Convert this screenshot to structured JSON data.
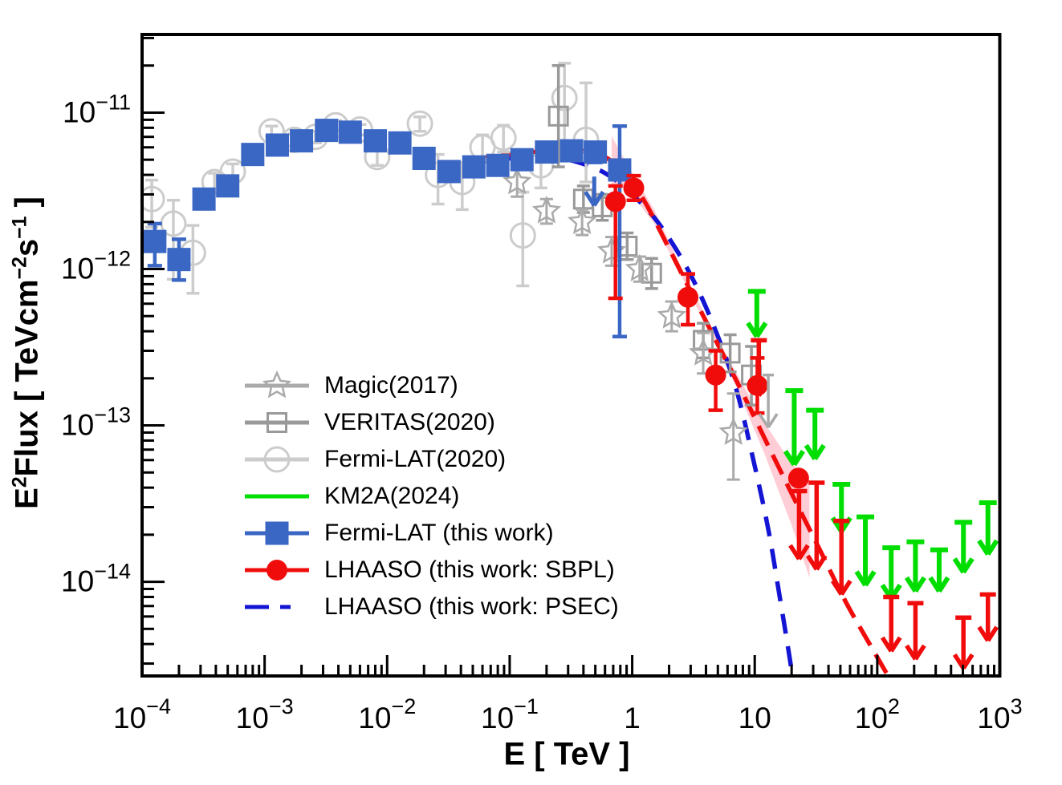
{
  "chart_data": {
    "type": "scatter",
    "title": "",
    "xlabel": "E [ TeV ]",
    "ylabel_parts": [
      {
        "t": "E"
      },
      {
        "t": "2",
        "sup": true
      },
      {
        "t": "Flux [ TeVcm"
      },
      {
        "t": "−2",
        "sup": true
      },
      {
        "t": "s"
      },
      {
        "t": "−1",
        "sup": true
      },
      {
        "t": " ]"
      }
    ],
    "xlim": [
      0.0001,
      1000
    ],
    "ylim": [
      2.5e-15,
      3.16e-11
    ],
    "grid": false,
    "legend_position": "inside-left-bottom",
    "x_tick_labels": [
      {
        "v": 0.0001,
        "base": "10",
        "exp": "−4"
      },
      {
        "v": 0.001,
        "base": "10",
        "exp": "−3"
      },
      {
        "v": 0.01,
        "base": "10",
        "exp": "−2"
      },
      {
        "v": 0.1,
        "base": "10",
        "exp": "−1"
      },
      {
        "v": 1,
        "base": "1",
        "exp": ""
      },
      {
        "v": 10,
        "base": "10",
        "exp": ""
      },
      {
        "v": 100,
        "base": "10",
        "exp": "2"
      },
      {
        "v": 1000,
        "base": "10",
        "exp": "3"
      }
    ],
    "y_tick_labels": [
      {
        "v": 1e-11,
        "base": "10",
        "exp": "−11"
      },
      {
        "v": 1e-12,
        "base": "10",
        "exp": "−12"
      },
      {
        "v": 1e-13,
        "base": "10",
        "exp": "−13"
      },
      {
        "v": 1e-14,
        "base": "10",
        "exp": "−14"
      }
    ],
    "colors": {
      "magic": "#aaaaaa",
      "veritas": "#999999",
      "fermi2020": "#cccccc",
      "km2a": "#00dd00",
      "fermi_this": "#3a66c4",
      "lhaaso": "#f10c0c",
      "psec": "#1414d4",
      "band": "#ffc0cb",
      "frame": "#000000"
    },
    "series": [
      {
        "id": "fermi2020",
        "name": "Fermi-LAT(2020)",
        "marker": "circle-open",
        "color": "#cccccc",
        "barw": 3.5,
        "points": [
          [
            0.00012,
            2.8e-12,
            1.85e-12,
            3.7e-12
          ],
          [
            0.00018,
            1.95e-12,
            8.6e-13,
            2.75e-12
          ],
          [
            0.00026,
            1.27e-12,
            7e-13,
            1.9e-12
          ],
          [
            0.00039,
            3.6e-12,
            3.1e-12,
            4.1e-12
          ],
          [
            0.00055,
            4.2e-12,
            3.7e-12,
            4.7e-12
          ],
          [
            0.00114,
            7.6e-12,
            7e-12,
            8.2e-12
          ],
          [
            0.00175,
            6.7e-12,
            6.1e-12,
            7.3e-12
          ],
          [
            0.0026,
            7e-12,
            6.4e-12,
            7.6e-12
          ],
          [
            0.0038,
            8.3e-12,
            7.7e-12,
            8.9e-12
          ],
          [
            0.006,
            7.8e-12,
            7.2e-12,
            8.4e-12
          ],
          [
            0.0083,
            5.2e-12,
            4.6e-12,
            5.8e-12
          ],
          [
            0.0185,
            8.5e-12,
            7.6e-12,
            9.4e-12
          ],
          [
            0.026,
            4e-12,
            2.6e-12,
            5.4e-12
          ],
          [
            0.041,
            3.6e-12,
            2.4e-12,
            4.8e-12
          ],
          [
            0.06,
            6e-12,
            4.9e-12,
            7.2e-12
          ],
          [
            0.089,
            6.9e-12,
            5.6e-12,
            8.3e-12
          ],
          [
            0.128,
            1.64e-12,
            7.8e-13,
            3.1e-12
          ],
          [
            0.18,
            4.6e-12,
            3.3e-12,
            6e-12
          ],
          [
            0.28,
            1.24e-11,
            6.3e-12,
            2.07e-11
          ],
          [
            0.42,
            6.7e-12,
            3.6e-12,
            1.55e-11
          ]
        ]
      },
      {
        "id": "veritas",
        "name": "VERITAS(2020)",
        "marker": "square-open",
        "color": "#999999",
        "barw": 3.5,
        "points": [
          [
            0.25,
            9.5e-12,
            4.5e-12,
            2e-11
          ],
          [
            0.4,
            2.8e-12,
            2.3e-12,
            3.4e-12
          ],
          [
            0.57,
            2.5e-12,
            2.05e-12,
            3e-12
          ],
          [
            0.91,
            1.4e-12,
            1.15e-12,
            1.7e-12
          ],
          [
            1.44,
            9.4e-13,
            7.5e-13,
            1.17e-12
          ],
          [
            3.8,
            3.5e-13,
            2.7e-13,
            4.5e-13
          ],
          [
            6.3,
            2.9e-13,
            2.2e-13,
            3.8e-13
          ],
          [
            9.4,
            2.1e-13,
            1.35e-13,
            3.2e-13
          ]
        ]
      },
      {
        "id": "magic",
        "name": "Magic(2017)",
        "marker": "star-open",
        "color": "#aaaaaa",
        "barw": 3,
        "points": [
          [
            0.115,
            3.6e-12,
            2.9e-12,
            4.3e-12
          ],
          [
            0.2,
            2.35e-12,
            1.95e-12,
            2.8e-12
          ],
          [
            0.39,
            2e-12,
            1.65e-12,
            2.4e-12
          ],
          [
            0.68,
            1.3e-12,
            1.05e-12,
            1.6e-12
          ],
          [
            1.15,
            1e-12,
            8.3e-13,
            1.2e-12
          ],
          [
            2.1,
            5e-13,
            4e-13,
            6.2e-13
          ],
          [
            3.8,
            2.9e-13,
            2.15e-13,
            3.9e-13
          ],
          [
            6.7,
            9e-14,
            4.5e-14,
            1.6e-13
          ]
        ]
      },
      {
        "id": "fermi_this",
        "name": "Fermi-LAT (this work)",
        "marker": "square-filled",
        "color": "#3a66c4",
        "barw": 4.5,
        "points": [
          [
            0.000127,
            1.5e-12,
            1.05e-12,
            1.95e-12
          ],
          [
            0.0002,
            1.15e-12,
            8.5e-13,
            1.55e-12
          ],
          [
            0.00032,
            2.8e-12,
            2.45e-12,
            3.2e-12
          ],
          [
            0.0005,
            3.4e-12,
            3e-12,
            3.8e-12
          ],
          [
            0.0008,
            5.4e-12,
            5e-12,
            5.8e-12
          ],
          [
            0.00127,
            6.2e-12,
            5.8e-12,
            6.6e-12
          ],
          [
            0.002,
            6.6e-12,
            6.2e-12,
            7e-12
          ],
          [
            0.0032,
            7.7e-12,
            7.3e-12,
            8.1e-12
          ],
          [
            0.005,
            7.5e-12,
            7.1e-12,
            7.9e-12
          ],
          [
            0.008,
            6.6e-12,
            6.2e-12,
            7e-12
          ],
          [
            0.0127,
            6.4e-12,
            6e-12,
            6.8e-12
          ],
          [
            0.02,
            5.1e-12,
            4.7e-12,
            5.5e-12
          ],
          [
            0.032,
            4.2e-12,
            3.7e-12,
            4.7e-12
          ],
          [
            0.051,
            4.5e-12,
            4e-12,
            5e-12
          ],
          [
            0.08,
            4.6e-12,
            4.1e-12,
            5.1e-12
          ],
          [
            0.126,
            5e-12,
            4.4e-12,
            5.6e-12
          ],
          [
            0.2,
            5.6e-12,
            4.9e-12,
            6.3e-12
          ],
          [
            0.32,
            5.7e-12,
            5e-12,
            6.5e-12
          ],
          [
            0.5,
            5.6e-12,
            4.8e-12,
            6.4e-12
          ],
          [
            0.79,
            4.3e-12,
            3.7e-13,
            8.2e-12
          ]
        ]
      },
      {
        "id": "lhaaso",
        "name": "LHAASO (this work: SBPL)",
        "marker": "circle-filled",
        "color": "#f10c0c",
        "barw": 4.5,
        "points": [
          [
            0.73,
            2.7e-12,
            6.5e-13,
            3.4e-12
          ],
          [
            1.03,
            3.3e-12,
            2.75e-12,
            3.95e-12
          ],
          [
            2.85,
            6.6e-13,
            4.4e-13,
            9.3e-13
          ],
          [
            4.8,
            2.1e-13,
            1.25e-13,
            3e-13
          ],
          [
            10.5,
            1.8e-13,
            1.2e-13,
            2.7e-13
          ],
          [
            22.8,
            4.6e-14,
            null,
            null
          ]
        ]
      }
    ],
    "curves": [
      {
        "id": "psec",
        "name": "LHAASO (this work: PSEC)",
        "color": "#1414d4",
        "width": 5.5,
        "dash": "25 16",
        "points": [
          [
            0.026,
            4.4e-12
          ],
          [
            0.05,
            4.8e-12
          ],
          [
            0.1,
            5.1e-12
          ],
          [
            0.18,
            5.2e-12
          ],
          [
            0.3,
            5e-12
          ],
          [
            0.5,
            4.4e-12
          ],
          [
            0.7,
            3.8e-12
          ],
          [
            1.0,
            3e-12
          ],
          [
            1.5,
            2.15e-12
          ],
          [
            2.2,
            1.4e-12
          ],
          [
            3.2,
            8.3e-13
          ],
          [
            4.7,
            4.2e-13
          ],
          [
            7.0,
            1.75e-13
          ],
          [
            10,
            5.5e-14
          ],
          [
            13,
            2.1e-14
          ],
          [
            16,
            8e-15
          ],
          [
            18.5,
            4e-15
          ],
          [
            20.5,
            2.4e-15
          ]
        ]
      },
      {
        "id": "sbpl",
        "name": "LHAASO (this work: SBPL) fit",
        "color": "#f10c0c",
        "width": 5.5,
        "dash": "27 13",
        "points": [
          [
            0.026,
            4.5e-12
          ],
          [
            0.05,
            5e-12
          ],
          [
            0.1,
            5.4e-12
          ],
          [
            0.2,
            5.7e-12
          ],
          [
            0.3,
            5.8e-12
          ],
          [
            0.45,
            5.6e-12
          ],
          [
            0.6,
            5.2e-12
          ],
          [
            0.8,
            4.4e-12
          ],
          [
            1.0,
            3.5e-12
          ],
          [
            1.3,
            2.6e-12
          ],
          [
            2.0,
            1.35e-12
          ],
          [
            3.0,
            7.2e-13
          ],
          [
            5.0,
            3.3e-13
          ],
          [
            8.0,
            1.6e-13
          ],
          [
            13,
            7.3e-14
          ],
          [
            21,
            3.4e-14
          ],
          [
            34,
            1.6e-14
          ],
          [
            55,
            7.5e-15
          ],
          [
            90,
            3.8e-15
          ],
          [
            150,
            1.9e-15
          ]
        ]
      }
    ],
    "band": {
      "id": "sbpl-confidence-band",
      "color": "#ffc0cb",
      "opacity": 0.8,
      "points": [
        [
          0.68,
          3.4e-12,
          7.1e-12
        ],
        [
          0.8,
          3.43e-12,
          5.6e-12
        ],
        [
          1.0,
          2.98e-12,
          4.13e-12
        ],
        [
          1.5,
          1.98e-12,
          2.42e-12
        ],
        [
          2.5,
          9.2e-13,
          1.04e-12
        ],
        [
          4.0,
          4.3e-13,
          4.9e-13
        ],
        [
          7.0,
          1.8e-13,
          2.2e-13
        ],
        [
          12,
          6.6e-14,
          1.04e-13
        ],
        [
          20,
          2.3e-14,
          5.7e-14
        ],
        [
          28,
          1.06e-14,
          4.4e-14
        ]
      ]
    },
    "upper_limit_arrows": [
      {
        "id": "km2a-limits",
        "name": "KM2A(2024)",
        "color": "#00dd00",
        "width": 6,
        "cap": 11,
        "items": [
          [
            10.4,
            7.2e-13,
            3.7e-13
          ],
          [
            21,
            1.67e-13,
            5.6e-14
          ],
          [
            31,
            1.25e-13,
            6.1e-14
          ],
          [
            51,
            4.2e-14,
            2.1e-14
          ],
          [
            80,
            2.6e-14,
            9.5e-15
          ],
          [
            130,
            1.65e-14,
            7.8e-15
          ],
          [
            205,
            1.8e-14,
            8.7e-15
          ],
          [
            320,
            1.6e-14,
            8.7e-15
          ],
          [
            505,
            2.4e-14,
            1.15e-14
          ],
          [
            800,
            3.2e-14,
            1.5e-14
          ]
        ]
      },
      {
        "id": "lhaaso-limits",
        "name": "LHAASO upper limits",
        "color": "#f10c0c",
        "width": 5.5,
        "cap": 10,
        "items": [
          [
            10.8,
            3.5e-13,
            1.55e-13
          ],
          [
            23,
            3.8e-14,
            1.4e-14
          ],
          [
            32,
            4.3e-14,
            1.2e-14
          ],
          [
            51,
            2.45e-14,
            8.3e-15
          ],
          [
            130,
            8e-15,
            3.6e-15
          ],
          [
            205,
            7.3e-15,
            3.2e-15
          ],
          [
            505,
            5.9e-15,
            2.8e-15
          ],
          [
            800,
            8.3e-15,
            4.2e-15
          ]
        ]
      },
      {
        "id": "fermi-this-limit",
        "name": "Fermi-LAT upper limit",
        "color": "#3a66c4",
        "width": 5,
        "cap": 0,
        "items": [
          [
            0.49,
            3.9e-12,
            2.55e-12
          ]
        ]
      },
      {
        "id": "veritas-limit",
        "name": "VERITAS upper limit",
        "color": "#aaaaaa",
        "width": 3.5,
        "cap": 7,
        "items": [
          [
            12.9,
            2.1e-13,
            9.7e-14
          ]
        ]
      }
    ],
    "legend": [
      {
        "label": "Magic(2017)",
        "marker": "star-open",
        "line": "solid",
        "color": "#aaaaaa"
      },
      {
        "label": "VERITAS(2020)",
        "marker": "square-open",
        "line": "solid",
        "color": "#999999"
      },
      {
        "label": "Fermi-LAT(2020)",
        "marker": "circle-open",
        "line": "solid",
        "color": "#cccccc"
      },
      {
        "label": "KM2A(2024)",
        "marker": "none",
        "line": "solid",
        "color": "#00dd00"
      },
      {
        "label": "Fermi-LAT (this work)",
        "marker": "square-filled",
        "line": "solid",
        "color": "#3a66c4"
      },
      {
        "label": "LHAASO (this work: SBPL)",
        "marker": "circle-filled",
        "line": "solid",
        "color": "#f10c0c"
      },
      {
        "label": "LHAASO (this work: PSEC)",
        "marker": "none",
        "line": "long-short-dash",
        "color": "#1414d4"
      }
    ]
  }
}
